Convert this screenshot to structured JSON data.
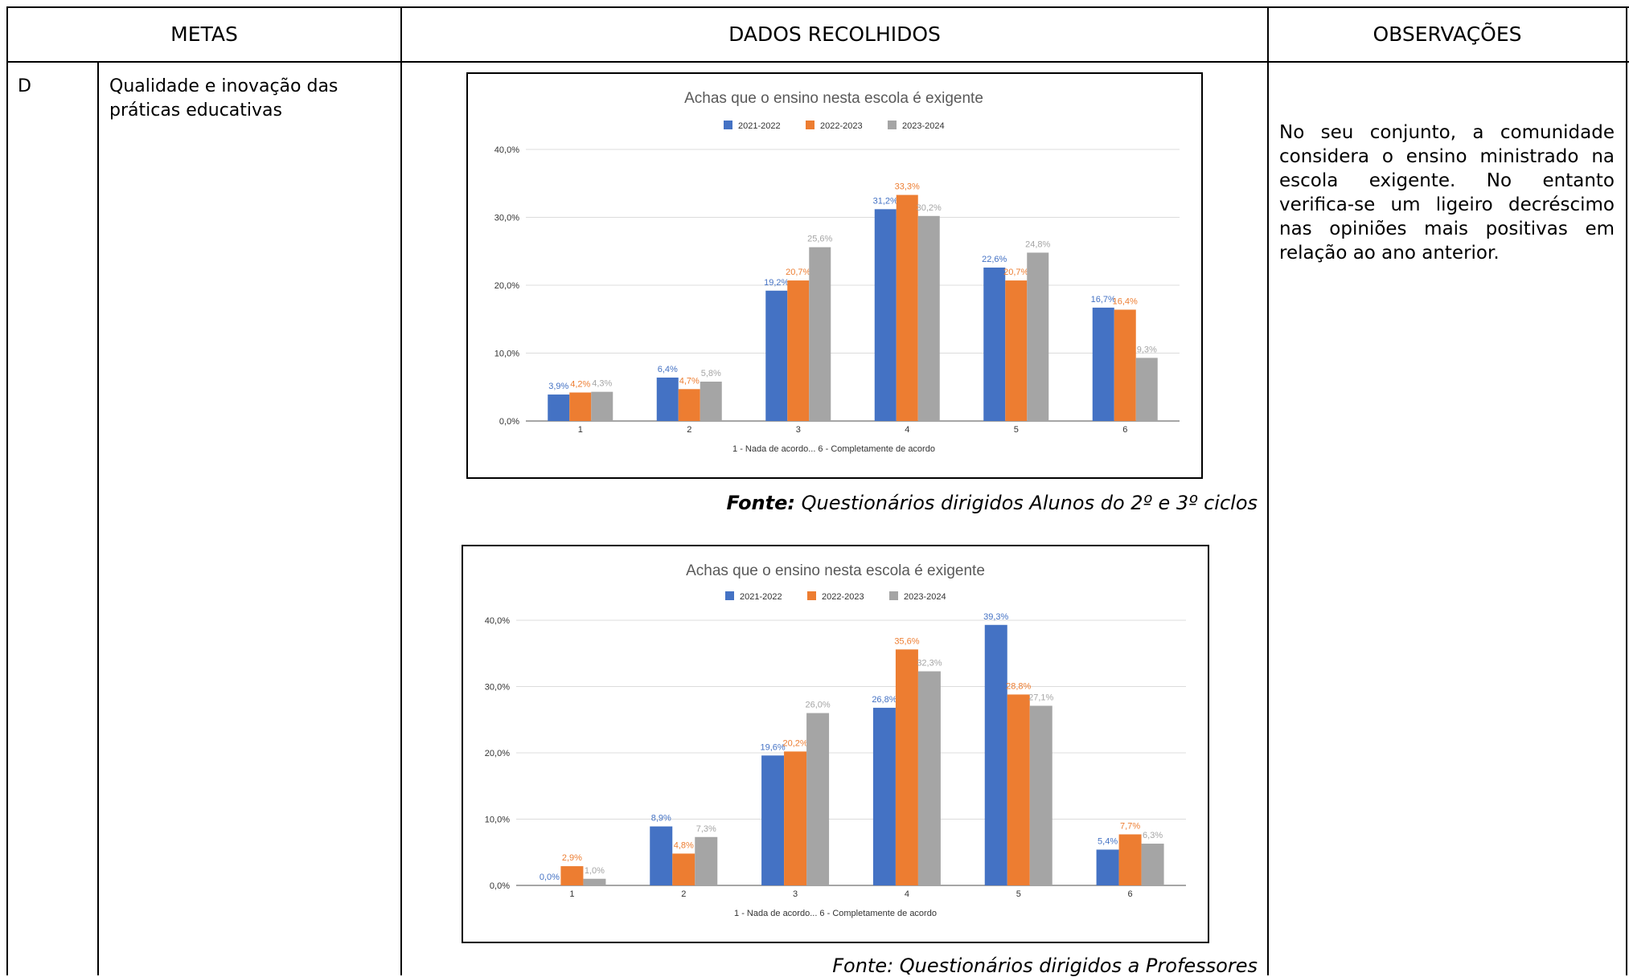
{
  "table": {
    "headers": {
      "metas": "METAS",
      "dados": "DADOS RECOLHIDOS",
      "observacoes": "OBSERVAÇÕES"
    },
    "row": {
      "letter": "D",
      "goal_line1": "Qualidade e inovação das",
      "goal_line2": "práticas educativas",
      "observations": "No seu conjunto, a comunidade considera o ensino ministrado na escola exigente. No entanto verifica-se um ligeiro decréscimo nas opiniões mais positivas em relação ao ano anterior."
    }
  },
  "captions": {
    "first_label": "Fonte:",
    "first_text": " Questionários dirigidos Alunos do 2º e 3º ciclos",
    "second": "Fonte: Questionários dirigidos a Professores"
  },
  "colors": {
    "s2021": "#4472c4",
    "s2022": "#ed7d31",
    "s2023": "#a5a5a5"
  },
  "chart_data": [
    {
      "type": "bar",
      "title": "Achas que o ensino nesta escola é exigente",
      "xlabel": "1 - Nada de acordo... 6 - Completamente de acordo",
      "ylabel": "",
      "categories": [
        "1",
        "2",
        "3",
        "4",
        "5",
        "6"
      ],
      "ylim": [
        0,
        40
      ],
      "yticks": [
        "0,0%",
        "10,0%",
        "20,0%",
        "30,0%",
        "40,0%"
      ],
      "legend_position": "top",
      "grid": true,
      "series": [
        {
          "name": "2021-2022",
          "values": [
            3.9,
            6.4,
            19.2,
            31.2,
            22.6,
            16.7
          ],
          "labels": [
            "3,9%",
            "6,4%",
            "19,2%",
            "31,2%",
            "22,6%",
            "16,7%"
          ]
        },
        {
          "name": "2022-2023",
          "values": [
            4.2,
            4.7,
            20.7,
            33.3,
            20.7,
            16.4
          ],
          "labels": [
            "4,2%",
            "4,7%",
            "20,7%",
            "33,3%",
            "20,7%",
            "16,4%"
          ]
        },
        {
          "name": "2023-2024",
          "values": [
            4.3,
            5.8,
            25.6,
            30.2,
            24.8,
            9.3
          ],
          "labels": [
            "4,3%",
            "5,8%",
            "25,6%",
            "30,2%",
            "24,8%",
            "9,3%"
          ]
        }
      ]
    },
    {
      "type": "bar",
      "title": "Achas que o ensino nesta escola é exigente",
      "xlabel": "1 - Nada de acordo... 6 - Completamente de acordo",
      "ylabel": "",
      "categories": [
        "1",
        "2",
        "3",
        "4",
        "5",
        "6"
      ],
      "ylim": [
        0,
        40
      ],
      "yticks": [
        "0,0%",
        "10,0%",
        "20,0%",
        "30,0%",
        "40,0%"
      ],
      "legend_position": "top",
      "grid": true,
      "series": [
        {
          "name": "2021-2022",
          "values": [
            0.0,
            8.9,
            19.6,
            26.8,
            39.3,
            5.4
          ],
          "labels": [
            "0,0%",
            "8,9%",
            "19,6%",
            "26,8%",
            "39,3%",
            "5,4%"
          ]
        },
        {
          "name": "2022-2023",
          "values": [
            2.9,
            4.8,
            20.2,
            35.6,
            28.8,
            7.7
          ],
          "labels": [
            "2,9%",
            "4,8%",
            "20,2%",
            "35,6%",
            "28,8%",
            "7,7%"
          ]
        },
        {
          "name": "2023-2024",
          "values": [
            1.0,
            7.3,
            26.0,
            32.3,
            27.1,
            6.3
          ],
          "labels": [
            "1,0%",
            "7,3%",
            "26,0%",
            "32,3%",
            "27,1%",
            "6,3%"
          ]
        }
      ]
    }
  ]
}
